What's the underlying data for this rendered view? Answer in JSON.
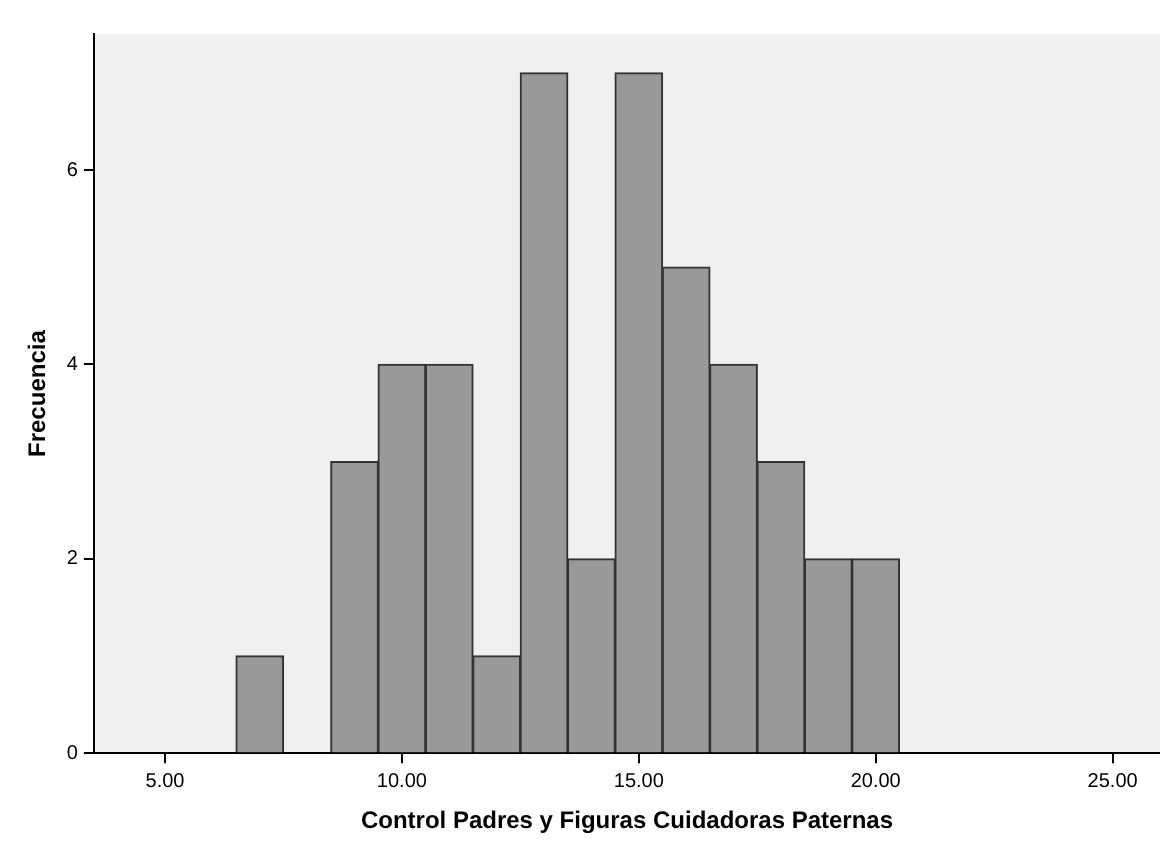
{
  "chart_data": {
    "type": "histogram",
    "xlabel": "Control Padres y Figuras Cuidadoras Paternas",
    "ylabel": "Frecuencia",
    "bins": [
      6.5,
      7.5,
      8.5,
      9.5,
      10.5,
      11.5,
      12.5,
      13.5,
      14.5,
      15.5,
      16.5,
      17.5,
      18.5,
      19.5,
      20.5
    ],
    "values": [
      1,
      0,
      3,
      4,
      4,
      1,
      7,
      2,
      7,
      5,
      4,
      3,
      2,
      2
    ],
    "color": "#999999",
    "xlim": [
      3.5,
      26
    ],
    "xticks": [
      {
        "value": 5,
        "label": "5.00"
      },
      {
        "value": 10,
        "label": "10.00"
      },
      {
        "value": 15,
        "label": "15.00"
      },
      {
        "value": 20,
        "label": "20.00"
      },
      {
        "value": 25,
        "label": "25.00"
      }
    ],
    "ylim": [
      0,
      7.4
    ],
    "yticks": [
      0,
      2,
      4,
      6
    ],
    "grid": false,
    "legend": false
  }
}
